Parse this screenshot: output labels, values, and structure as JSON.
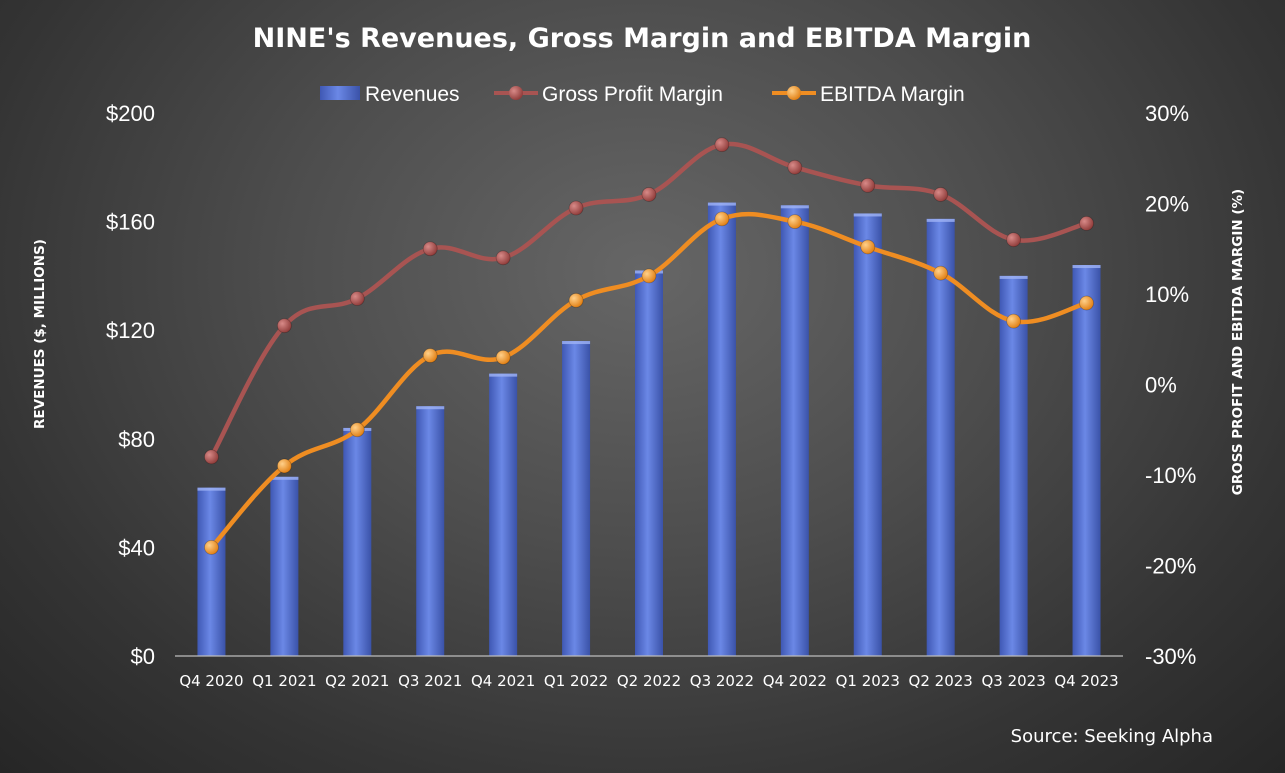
{
  "chart_data": {
    "type": "bar",
    "title": "NINE's Revenues, Gross Margin and EBITDA Margin",
    "categories": [
      "Q4 2020",
      "Q1 2021",
      "Q2 2021",
      "Q3 2021",
      "Q4 2021",
      "Q1 2022",
      "Q2 2022",
      "Q3 2022",
      "Q4 2022",
      "Q1 2023",
      "Q2 2023",
      "Q3 2023",
      "Q4 2023"
    ],
    "series": [
      {
        "name": "Revenues",
        "type": "bar",
        "axis": "left",
        "color": "#5b78d6",
        "values": [
          62,
          66,
          84,
          92,
          104,
          116,
          142,
          167,
          166,
          163,
          161,
          140,
          144
        ]
      },
      {
        "name": "Gross Profit Margin",
        "type": "line",
        "axis": "right",
        "color": "#a85452",
        "values": [
          -8,
          6.5,
          9.5,
          15,
          14,
          19.5,
          21,
          26.5,
          24,
          22,
          21,
          16,
          17.8
        ]
      },
      {
        "name": "EBITDA Margin",
        "type": "line",
        "axis": "right",
        "color": "#ef8d22",
        "values": [
          -18,
          -9,
          -5,
          3.2,
          3,
          9.3,
          12,
          18.3,
          18,
          15.2,
          12.3,
          7,
          9
        ]
      }
    ],
    "ylabel": "REVENUES ($, MILLIONS)",
    "y2label": "GROSS PROFIT AND EBITDA MARGIN (%)",
    "ylim": [
      0,
      200
    ],
    "y2lim": [
      -30,
      30
    ],
    "yticks": [
      "$0",
      "$40",
      "$80",
      "$120",
      "$160",
      "$200"
    ],
    "y2ticks": [
      "-30%",
      "-20%",
      "-10%",
      "0%",
      "10%",
      "20%",
      "30%"
    ],
    "legend_position": "top-center",
    "grid": false,
    "source": "Source: Seeking Alpha"
  }
}
